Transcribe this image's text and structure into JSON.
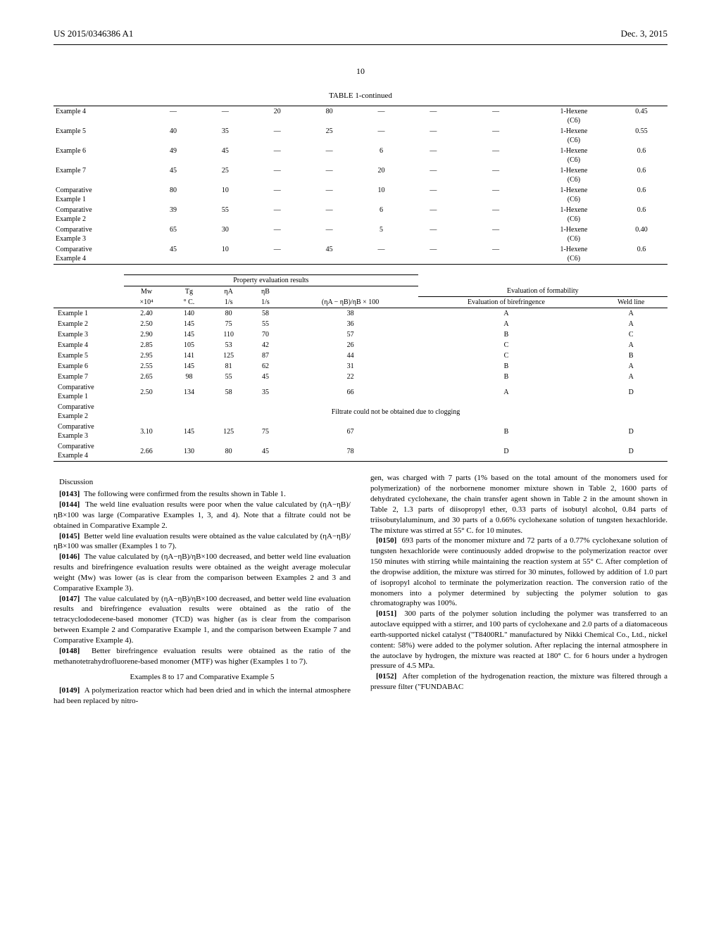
{
  "header": {
    "pub_number": "US 2015/0346386 A1",
    "pub_date": "Dec. 3, 2015"
  },
  "page_number": "10",
  "table1": {
    "caption": "TABLE 1-continued",
    "rows": [
      {
        "label": "Example 4",
        "c1": "—",
        "c2": "—",
        "c3": "20",
        "c4": "80",
        "c5": "—",
        "c6": "—",
        "c7": "—",
        "c8": "1-Hexene (C6)",
        "c9": "0.45"
      },
      {
        "label": "Example 5",
        "c1": "40",
        "c2": "35",
        "c3": "—",
        "c4": "25",
        "c5": "—",
        "c6": "—",
        "c7": "—",
        "c8": "1-Hexene (C6)",
        "c9": "0.55"
      },
      {
        "label": "Example 6",
        "c1": "49",
        "c2": "45",
        "c3": "—",
        "c4": "—",
        "c5": "6",
        "c6": "—",
        "c7": "—",
        "c8": "1-Hexene (C6)",
        "c9": "0.6"
      },
      {
        "label": "Example 7",
        "c1": "45",
        "c2": "25",
        "c3": "—",
        "c4": "—",
        "c5": "20",
        "c6": "—",
        "c7": "—",
        "c8": "1-Hexene (C6)",
        "c9": "0.6"
      },
      {
        "label": "Comparative Example 1",
        "c1": "80",
        "c2": "10",
        "c3": "—",
        "c4": "—",
        "c5": "10",
        "c6": "—",
        "c7": "—",
        "c8": "1-Hexene (C6)",
        "c9": "0.6"
      },
      {
        "label": "Comparative Example 2",
        "c1": "39",
        "c2": "55",
        "c3": "—",
        "c4": "—",
        "c5": "6",
        "c6": "—",
        "c7": "—",
        "c8": "1-Hexene (C6)",
        "c9": "0.6"
      },
      {
        "label": "Comparative Example 3",
        "c1": "65",
        "c2": "30",
        "c3": "—",
        "c4": "—",
        "c5": "5",
        "c6": "—",
        "c7": "—",
        "c8": "1-Hexene (C6)",
        "c9": "0.40"
      },
      {
        "label": "Comparative Example 4",
        "c1": "45",
        "c2": "10",
        "c3": "—",
        "c4": "45",
        "c5": "—",
        "c6": "—",
        "c7": "—",
        "c8": "1-Hexene (C6)",
        "c9": "0.6"
      }
    ]
  },
  "table2": {
    "section_label": "Property evaluation results",
    "form_label": "Evaluation of formability",
    "headers1": [
      "Mw",
      "Tg",
      "ηA",
      "ηB",
      "",
      "Evaluation of birefringence",
      "Weld line"
    ],
    "headers2": [
      "×10⁴",
      "° C.",
      "1/s",
      "1/s",
      "(ηA − ηB)/ηB × 100",
      "",
      ""
    ],
    "rows": [
      {
        "label": "Example 1",
        "mw": "2.40",
        "tg": "140",
        "na": "80",
        "nb": "58",
        "calc": "38",
        "bir": "A",
        "weld": "A"
      },
      {
        "label": "Example 2",
        "mw": "2.50",
        "tg": "145",
        "na": "75",
        "nb": "55",
        "calc": "36",
        "bir": "A",
        "weld": "A"
      },
      {
        "label": "Example 3",
        "mw": "2.90",
        "tg": "145",
        "na": "110",
        "nb": "70",
        "calc": "57",
        "bir": "B",
        "weld": "C"
      },
      {
        "label": "Example 4",
        "mw": "2.85",
        "tg": "105",
        "na": "53",
        "nb": "42",
        "calc": "26",
        "bir": "C",
        "weld": "A"
      },
      {
        "label": "Example 5",
        "mw": "2.95",
        "tg": "141",
        "na": "125",
        "nb": "87",
        "calc": "44",
        "bir": "C",
        "weld": "B"
      },
      {
        "label": "Example 6",
        "mw": "2.55",
        "tg": "145",
        "na": "81",
        "nb": "62",
        "calc": "31",
        "bir": "B",
        "weld": "A"
      },
      {
        "label": "Example 7",
        "mw": "2.65",
        "tg": "98",
        "na": "55",
        "nb": "45",
        "calc": "22",
        "bir": "B",
        "weld": "A"
      },
      {
        "label": "Comparative Example 1",
        "mw": "2.50",
        "tg": "134",
        "na": "58",
        "nb": "35",
        "calc": "66",
        "bir": "A",
        "weld": "D"
      },
      {
        "label": "Comparative Example 2",
        "span": "Filtrate could not be obtained due to clogging"
      },
      {
        "label": "Comparative Example 3",
        "mw": "3.10",
        "tg": "145",
        "na": "125",
        "nb": "75",
        "calc": "67",
        "bir": "B",
        "weld": "D"
      },
      {
        "label": "Comparative Example 4",
        "mw": "2.66",
        "tg": "130",
        "na": "80",
        "nb": "45",
        "calc": "78",
        "bir": "D",
        "weld": "D"
      }
    ]
  },
  "body": {
    "discussion_head": "Discussion",
    "p0143_num": "[0143]",
    "p0143": "The following were confirmed from the results shown in Table 1.",
    "p0144_num": "[0144]",
    "p0144": "The weld line evaluation results were poor when the value calculated by (ηA−ηB)/ηB×100 was large (Comparative Examples 1, 3, and 4). Note that a filtrate could not be obtained in Comparative Example 2.",
    "p0145_num": "[0145]",
    "p0145": "Better weld line evaluation results were obtained as the value calculated by (ηA−ηB)/ηB×100 was smaller (Examples 1 to 7).",
    "p0146_num": "[0146]",
    "p0146": "The value calculated by (ηA−ηB)/ηB×100 decreased, and better weld line evaluation results and birefringence evaluation results were obtained as the weight average molecular weight (Mw) was lower (as is clear from the comparison between Examples 2 and 3 and Comparative Example 3).",
    "p0147_num": "[0147]",
    "p0147": "The value calculated by (ηA−ηB)/ηB×100 decreased, and better weld line evaluation results and birefringence evaluation results were obtained as the ratio of the tetracyclododecene-based monomer (TCD) was higher (as is clear from the comparison between Example 2 and Comparative Example 1, and the comparison between Example 7 and Comparative Example 4).",
    "p0148_num": "[0148]",
    "p0148": "Better birefringence evaluation results were obtained as the ratio of the methanotetrahydrofluorene-based monomer (MTF) was higher (Examples 1 to 7).",
    "examples_head": "Examples 8 to 17 and Comparative Example 5",
    "p0149_num": "[0149]",
    "p0149": "A polymerization reactor which had been dried and in which the internal atmosphere had been replaced by nitro-",
    "p0149_cont": "gen, was charged with 7 parts (1% based on the total amount of the monomers used for polymerization) of the norbornene monomer mixture shown in Table 2, 1600 parts of dehydrated cyclohexane, the chain transfer agent shown in Table 2 in the amount shown in Table 2, 1.3 parts of diisopropyl ether, 0.33 parts of isobutyl alcohol, 0.84 parts of triisobutylaluminum, and 30 parts of a 0.66% cyclohexane solution of tungsten hexachloride. The mixture was stirred at 55° C. for 10 minutes.",
    "p0150_num": "[0150]",
    "p0150": "693 parts of the monomer mixture and 72 parts of a 0.77% cyclohexane solution of tungsten hexachloride were continuously added dropwise to the polymerization reactor over 150 minutes with stirring while maintaining the reaction system at 55° C. After completion of the dropwise addition, the mixture was stirred for 30 minutes, followed by addition of 1.0 part of isopropyl alcohol to terminate the polymerization reaction. The conversion ratio of the monomers into a polymer determined by subjecting the polymer solution to gas chromatography was 100%.",
    "p0151_num": "[0151]",
    "p0151": "300 parts of the polymer solution including the polymer was transferred to an autoclave equipped with a stirrer, and 100 parts of cyclohexane and 2.0 parts of a diatomaceous earth-supported nickel catalyst (\"T8400RL\" manufactured by Nikki Chemical Co., Ltd., nickel content: 58%) were added to the polymer solution. After replacing the internal atmosphere in the autoclave by hydrogen, the mixture was reacted at 180° C. for 6 hours under a hydrogen pressure of 4.5 MPa.",
    "p0152_num": "[0152]",
    "p0152": "After completion of the hydrogenation reaction, the mixture was filtered through a pressure filter (\"FUNDABAC"
  }
}
